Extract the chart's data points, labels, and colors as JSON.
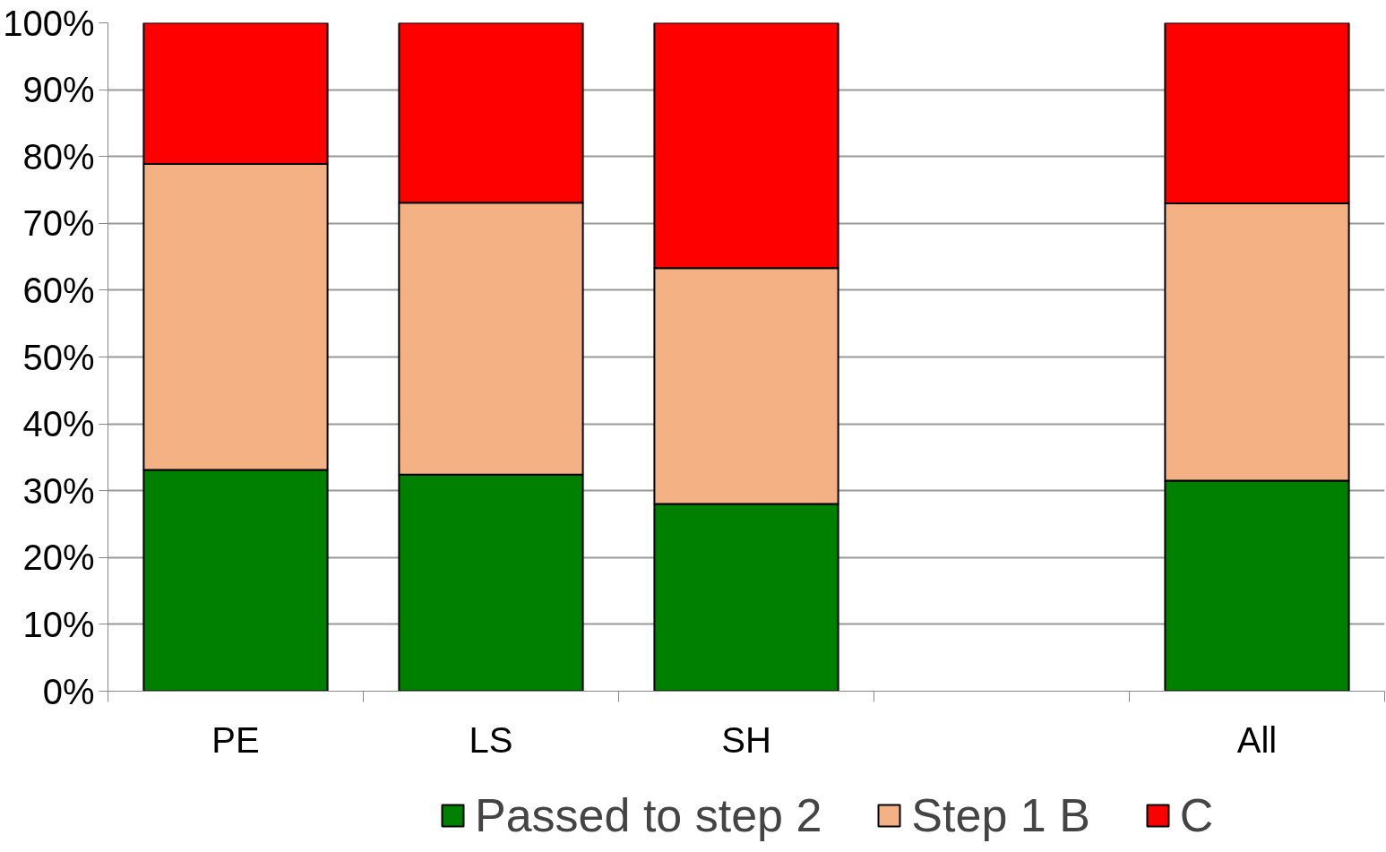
{
  "chart_data": {
    "type": "bar",
    "stacked": true,
    "categories": [
      "PE",
      "LS",
      "SH",
      null,
      "All"
    ],
    "series": [
      {
        "name": "Passed to step 2",
        "color": "#008000",
        "values": [
          33.1,
          32.4,
          28.0,
          null,
          31.5
        ]
      },
      {
        "name": "Step 1 B",
        "color": "#f4b183",
        "values": [
          45.8,
          40.7,
          35.3,
          null,
          41.5
        ]
      },
      {
        "name": "C",
        "color": "#ff0000",
        "values": [
          21.1,
          26.9,
          36.7,
          null,
          27.0
        ]
      }
    ],
    "ylim": [
      0,
      100
    ],
    "yticks": [
      {
        "value": 0,
        "label": "0%"
      },
      {
        "value": 10,
        "label": "10%"
      },
      {
        "value": 20,
        "label": "20%"
      },
      {
        "value": 30,
        "label": "30%"
      },
      {
        "value": 40,
        "label": "40%"
      },
      {
        "value": 50,
        "label": "50%"
      },
      {
        "value": 60,
        "label": "60%"
      },
      {
        "value": 70,
        "label": "70%"
      },
      {
        "value": 80,
        "label": "80%"
      },
      {
        "value": 90,
        "label": "90%"
      },
      {
        "value": 100,
        "label": "100%"
      }
    ],
    "grid": "y",
    "legend": "bottom"
  }
}
